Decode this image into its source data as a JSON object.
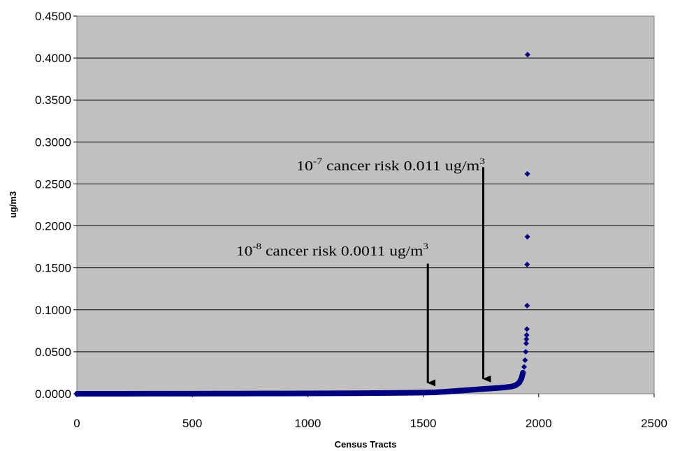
{
  "chart_data": {
    "type": "scatter",
    "title": "",
    "xlabel": "Census Tracts",
    "ylabel": "ug/m3",
    "xlim": [
      0,
      2500
    ],
    "ylim": [
      0,
      0.45
    ],
    "x_ticks": [
      "0",
      "500",
      "1000",
      "1500",
      "2000",
      "2500"
    ],
    "y_ticks": [
      "0.0000",
      "0.0500",
      "0.1000",
      "0.1500",
      "0.2000",
      "0.2500",
      "0.3000",
      "0.3500",
      "0.4000",
      "0.4500"
    ],
    "grid": "horizontal",
    "background": "#c0c0c0",
    "marker_color": "#000080",
    "series_points": [
      [
        1,
        0.0
      ],
      [
        100,
        0.0
      ],
      [
        200,
        0.0
      ],
      [
        300,
        0.0001
      ],
      [
        400,
        0.0001
      ],
      [
        500,
        0.0001
      ],
      [
        600,
        0.0002
      ],
      [
        700,
        0.0002
      ],
      [
        800,
        0.0003
      ],
      [
        900,
        0.0003
      ],
      [
        1000,
        0.0004
      ],
      [
        1100,
        0.0005
      ],
      [
        1200,
        0.0006
      ],
      [
        1300,
        0.0008
      ],
      [
        1400,
        0.001
      ],
      [
        1500,
        0.0013
      ],
      [
        1550,
        0.0017
      ],
      [
        1600,
        0.0025
      ],
      [
        1650,
        0.0035
      ],
      [
        1700,
        0.0045
      ],
      [
        1750,
        0.0055
      ],
      [
        1800,
        0.0065
      ],
      [
        1850,
        0.0075
      ],
      [
        1880,
        0.0085
      ],
      [
        1900,
        0.01
      ],
      [
        1915,
        0.013
      ],
      [
        1925,
        0.018
      ],
      [
        1932,
        0.025
      ],
      [
        1937,
        0.032
      ],
      [
        1941,
        0.04
      ],
      [
        1944,
        0.05
      ],
      [
        1946,
        0.06
      ],
      [
        1947,
        0.065
      ],
      [
        1948,
        0.07
      ],
      [
        1949,
        0.077
      ],
      [
        1950,
        0.105
      ],
      [
        1950,
        0.154
      ],
      [
        1951,
        0.187
      ],
      [
        1951,
        0.262
      ],
      [
        1952,
        0.404
      ]
    ],
    "annotations": [
      {
        "base": "10",
        "exponent": "-8",
        "label": " cancer risk 0.0011 ug/m",
        "unit_exponent": "3",
        "arrow_x": 1520,
        "arrow_y_tip": 0.0013,
        "arrow_y_top": 0.155
      },
      {
        "base": "10",
        "exponent": "-7",
        "label": " cancer risk 0.011 ug/m",
        "unit_exponent": "3",
        "arrow_x": 1760,
        "arrow_y_tip": 0.006,
        "arrow_y_top": 0.27
      }
    ]
  }
}
